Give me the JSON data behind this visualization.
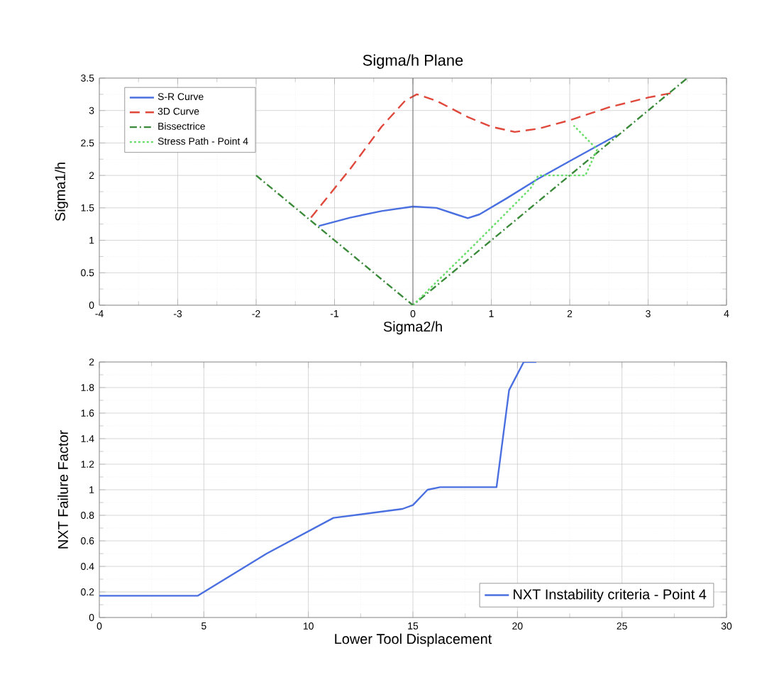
{
  "chart_data": [
    {
      "type": "line",
      "title": "Sigma/h Plane",
      "xlabel": "Sigma2/h",
      "ylabel": "Sigma1/h",
      "xlim": [
        -4,
        4
      ],
      "xticks": [
        -4,
        -3,
        -2,
        -1,
        0,
        1,
        2,
        3,
        4
      ],
      "ylim": [
        0,
        3.5
      ],
      "yticks": [
        0,
        0.5,
        1,
        1.5,
        2,
        2.5,
        3,
        3.5
      ],
      "grid": true,
      "legend": "top left",
      "marker": "none",
      "ref_lines": [
        {
          "axis": "x",
          "value": 0,
          "color": "#555555"
        }
      ],
      "series": [
        {
          "name": "S-R Curve",
          "color": "#4a6fe0",
          "line_style": "solid",
          "x": [
            -1.2,
            -0.8,
            -0.4,
            0,
            0.3,
            0.55,
            0.7,
            0.85,
            1.2,
            1.6,
            2.0,
            2.3,
            2.6
          ],
          "values": [
            1.22,
            1.35,
            1.45,
            1.52,
            1.5,
            1.4,
            1.34,
            1.4,
            1.65,
            1.95,
            2.22,
            2.42,
            2.62
          ]
        },
        {
          "name": "3D Curve",
          "color": "#e0483c",
          "line_style": "dashed",
          "x": [
            -1.3,
            -0.8,
            -0.4,
            -0.1,
            0.05,
            0.3,
            0.7,
            1.0,
            1.3,
            1.6,
            2.0,
            2.5,
            3.0,
            3.3
          ],
          "values": [
            1.35,
            2.1,
            2.75,
            3.15,
            3.25,
            3.15,
            2.9,
            2.75,
            2.67,
            2.72,
            2.85,
            3.05,
            3.2,
            3.27
          ]
        },
        {
          "name": "Bissectrice",
          "color": "#3a8a3a",
          "line_style": "dashdot",
          "x": [
            -2.0,
            0,
            3.5
          ],
          "values": [
            2.0,
            0,
            3.5
          ]
        },
        {
          "name": "Stress Path - Point 4",
          "color": "#66dd66",
          "line_style": "dotted",
          "x": [
            0,
            0.8,
            1.5,
            1.6,
            2.2,
            2.35,
            2.05
          ],
          "values": [
            0,
            0.95,
            1.8,
            2.0,
            2.0,
            2.4,
            2.77
          ]
        }
      ]
    },
    {
      "type": "line",
      "xlabel": "Lower Tool Displacement",
      "ylabel": "NXT Failure Factor",
      "xlim": [
        0,
        30
      ],
      "xticks": [
        0,
        5,
        10,
        15,
        20,
        25,
        30
      ],
      "ylim": [
        0,
        2
      ],
      "yticks": [
        0,
        0.2,
        0.4,
        0.6,
        0.8,
        1,
        1.2,
        1.4,
        1.6,
        1.8,
        2
      ],
      "grid": true,
      "legend": "bottom right",
      "marker": "none",
      "series": [
        {
          "name": "NXT Instability criteria - Point 4",
          "color": "#4a6fe0",
          "line_style": "solid",
          "x": [
            0,
            4.7,
            8,
            11.2,
            14.5,
            15,
            15.7,
            16.3,
            19,
            19.6,
            20.3,
            20.9
          ],
          "values": [
            0.17,
            0.17,
            0.5,
            0.78,
            0.85,
            0.88,
            1.0,
            1.02,
            1.02,
            1.78,
            2.0,
            2.0
          ]
        }
      ]
    }
  ]
}
